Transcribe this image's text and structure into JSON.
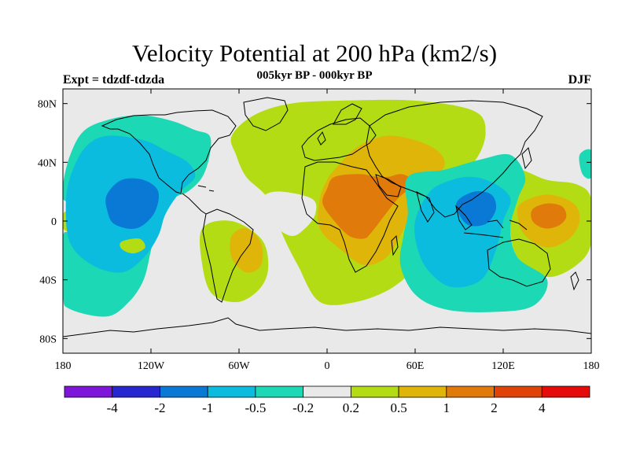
{
  "header": {
    "title": "Velocity Potential at 200 hPa (km2/s)",
    "subtitle": "005kyr BP - 000kyr BP",
    "left_label": "Expt = tdzdf-tdzda",
    "right_label": "DJF"
  },
  "axes": {
    "x_ticks": [
      {
        "value": -180,
        "label": "180"
      },
      {
        "value": -120,
        "label": "120W"
      },
      {
        "value": -60,
        "label": "60W"
      },
      {
        "value": 0,
        "label": "0"
      },
      {
        "value": 60,
        "label": "60E"
      },
      {
        "value": 120,
        "label": "120E"
      },
      {
        "value": 180,
        "label": "180"
      }
    ],
    "y_ticks": [
      {
        "value": 80,
        "label": "80N"
      },
      {
        "value": 40,
        "label": "40N"
      },
      {
        "value": 0,
        "label": "0"
      },
      {
        "value": -40,
        "label": "40S"
      },
      {
        "value": -80,
        "label": "80S"
      }
    ],
    "lon_range": [
      -180,
      180
    ],
    "lat_range": [
      -90,
      90
    ]
  },
  "colorbar": {
    "colors": [
      "#7d16d8",
      "#2727d0",
      "#0a79d6",
      "#0cbcdf",
      "#1dd8b4",
      "#e9e9e9",
      "#b4dc14",
      "#e0b50a",
      "#e07a0a",
      "#e0430a",
      "#e60b0b"
    ],
    "labels": [
      "-4",
      "-2",
      "-1",
      "-0.5",
      "-0.2",
      "0.2",
      "0.5",
      "1",
      "2",
      "4"
    ]
  },
  "map_data": {
    "type": "contour-fill-map",
    "background_color": "#e9e9e9",
    "regions": [
      {
        "level": "0.2",
        "color": "#b4dc14",
        "points": [
          [
            -62,
            45
          ],
          [
            -65,
            58
          ],
          [
            -50,
            72
          ],
          [
            -25,
            80
          ],
          [
            10,
            82
          ],
          [
            60,
            82
          ],
          [
            100,
            75
          ],
          [
            108,
            60
          ],
          [
            100,
            40
          ],
          [
            80,
            25
          ],
          [
            70,
            10
          ],
          [
            55,
            -5
          ],
          [
            58,
            -30
          ],
          [
            45,
            -45
          ],
          [
            20,
            -55
          ],
          [
            -5,
            -55
          ],
          [
            -20,
            -30
          ],
          [
            -30,
            -10
          ],
          [
            -40,
            15
          ],
          [
            -55,
            30
          ]
        ]
      },
      {
        "level": "0.2",
        "color": "#b4dc14",
        "points": [
          [
            -85,
            -5
          ],
          [
            -65,
            0
          ],
          [
            -45,
            -12
          ],
          [
            -40,
            -30
          ],
          [
            -45,
            -45
          ],
          [
            -60,
            -55
          ],
          [
            -78,
            -50
          ],
          [
            -85,
            -30
          ]
        ]
      },
      {
        "level": "0.2",
        "color": "#b4dc14",
        "points": [
          [
            128,
            35
          ],
          [
            150,
            28
          ],
          [
            170,
            25
          ],
          [
            180,
            15
          ],
          [
            180,
            -15
          ],
          [
            170,
            -30
          ],
          [
            150,
            -38
          ],
          [
            130,
            -25
          ],
          [
            125,
            -5
          ],
          [
            128,
            15
          ]
        ]
      },
      {
        "level": "0.2",
        "color": "#b4dc14",
        "points": [
          [
            -180,
            5
          ],
          [
            -170,
            8
          ],
          [
            -168,
            0
          ],
          [
            -172,
            -8
          ],
          [
            -180,
            -5
          ]
        ]
      },
      {
        "level": "0.5",
        "color": "#e0b50a",
        "points": [
          [
            5,
            35
          ],
          [
            20,
            50
          ],
          [
            40,
            58
          ],
          [
            60,
            55
          ],
          [
            75,
            48
          ],
          [
            80,
            38
          ],
          [
            70,
            25
          ],
          [
            60,
            10
          ],
          [
            50,
            -10
          ],
          [
            40,
            -25
          ],
          [
            25,
            -30
          ],
          [
            10,
            -20
          ],
          [
            -5,
            -5
          ],
          [
            -5,
            15
          ],
          [
            0,
            28
          ]
        ]
      },
      {
        "level": "0.5",
        "color": "#e0b50a",
        "points": [
          [
            -65,
            -10
          ],
          [
            -55,
            -5
          ],
          [
            -45,
            -15
          ],
          [
            -45,
            -30
          ],
          [
            -55,
            -35
          ],
          [
            -65,
            -25
          ]
        ]
      },
      {
        "level": "0.5",
        "color": "#e0b50a",
        "points": [
          [
            132,
            12
          ],
          [
            150,
            18
          ],
          [
            168,
            12
          ],
          [
            172,
            0
          ],
          [
            165,
            -12
          ],
          [
            150,
            -18
          ],
          [
            135,
            -10
          ],
          [
            130,
            2
          ]
        ]
      },
      {
        "level": "1",
        "color": "#e07a0a",
        "points": [
          [
            5,
            30
          ],
          [
            22,
            32
          ],
          [
            35,
            30
          ],
          [
            50,
            30
          ],
          [
            58,
            25
          ],
          [
            48,
            15
          ],
          [
            40,
            5
          ],
          [
            30,
            -8
          ],
          [
            25,
            -12
          ],
          [
            15,
            -10
          ],
          [
            5,
            0
          ],
          [
            -3,
            12
          ],
          [
            0,
            22
          ]
        ]
      },
      {
        "level": "1",
        "color": "#e07a0a",
        "points": [
          [
            40,
            28
          ],
          [
            50,
            32
          ],
          [
            58,
            28
          ],
          [
            52,
            24
          ]
        ]
      },
      {
        "level": "1",
        "color": "#e07a0a",
        "points": [
          [
            140,
            8
          ],
          [
            150,
            12
          ],
          [
            160,
            10
          ],
          [
            163,
            3
          ],
          [
            158,
            -3
          ],
          [
            148,
            -5
          ],
          [
            140,
            0
          ]
        ]
      },
      {
        "level": "-0.2",
        "color": "#1dd8b4",
        "points": [
          [
            -180,
            25
          ],
          [
            -175,
            45
          ],
          [
            -165,
            62
          ],
          [
            -145,
            70
          ],
          [
            -125,
            72
          ],
          [
            -105,
            68
          ],
          [
            -90,
            62
          ],
          [
            -80,
            58
          ],
          [
            -80,
            45
          ],
          [
            -85,
            30
          ],
          [
            -95,
            20
          ],
          [
            -105,
            15
          ],
          [
            -115,
            0
          ],
          [
            -120,
            -20
          ],
          [
            -125,
            -40
          ],
          [
            -135,
            -55
          ],
          [
            -150,
            -65
          ],
          [
            -175,
            -60
          ],
          [
            -180,
            -50
          ],
          [
            -180,
            -10
          ],
          [
            -172,
            -10
          ],
          [
            -168,
            0
          ],
          [
            -170,
            10
          ],
          [
            -180,
            15
          ]
        ]
      },
      {
        "level": "-0.2",
        "color": "#1dd8b4",
        "points": [
          [
            55,
            30
          ],
          [
            80,
            35
          ],
          [
            105,
            42
          ],
          [
            125,
            45
          ],
          [
            135,
            30
          ],
          [
            130,
            15
          ],
          [
            125,
            -5
          ],
          [
            130,
            -25
          ],
          [
            150,
            -40
          ],
          [
            140,
            -58
          ],
          [
            110,
            -62
          ],
          [
            80,
            -60
          ],
          [
            60,
            -50
          ],
          [
            50,
            -30
          ],
          [
            52,
            -10
          ],
          [
            55,
            5
          ]
        ]
      },
      {
        "level": "-0.2",
        "color": "#1dd8b4",
        "points": [
          [
            172,
            45
          ],
          [
            180,
            48
          ],
          [
            180,
            30
          ],
          [
            174,
            32
          ]
        ]
      },
      {
        "level": "-0.5",
        "color": "#0cbcdf",
        "points": [
          [
            -175,
            30
          ],
          [
            -165,
            50
          ],
          [
            -150,
            58
          ],
          [
            -125,
            55
          ],
          [
            -110,
            48
          ],
          [
            -95,
            40
          ],
          [
            -90,
            30
          ],
          [
            -100,
            20
          ],
          [
            -110,
            5
          ],
          [
            -115,
            -10
          ],
          [
            -125,
            -25
          ],
          [
            -140,
            -35
          ],
          [
            -160,
            -30
          ],
          [
            -175,
            -15
          ],
          [
            -178,
            10
          ]
        ]
      },
      {
        "level": "-0.5",
        "color": "#0cbcdf",
        "points": [
          [
            70,
            20
          ],
          [
            85,
            28
          ],
          [
            100,
            30
          ],
          [
            115,
            25
          ],
          [
            125,
            15
          ],
          [
            120,
            0
          ],
          [
            115,
            -20
          ],
          [
            105,
            -40
          ],
          [
            85,
            -45
          ],
          [
            70,
            -35
          ],
          [
            62,
            -20
          ],
          [
            60,
            0
          ]
        ]
      },
      {
        "level": "-1",
        "color": "#0a79d6",
        "points": [
          [
            -150,
            18
          ],
          [
            -140,
            28
          ],
          [
            -125,
            28
          ],
          [
            -115,
            20
          ],
          [
            -118,
            5
          ],
          [
            -130,
            -5
          ],
          [
            -145,
            -2
          ],
          [
            -150,
            8
          ]
        ]
      },
      {
        "level": "-1",
        "color": "#0a79d6",
        "points": [
          [
            88,
            12
          ],
          [
            100,
            20
          ],
          [
            112,
            18
          ],
          [
            115,
            8
          ],
          [
            108,
            -2
          ],
          [
            95,
            -2
          ]
        ]
      },
      {
        "level": "0.2",
        "color": "#b4dc14",
        "points": [
          [
            -140,
            -14
          ],
          [
            -128,
            -12
          ],
          [
            -124,
            -18
          ],
          [
            -132,
            -22
          ],
          [
            -140,
            -19
          ]
        ]
      }
    ],
    "gap_regions": [
      {
        "points": [
          [
            -42,
            18
          ],
          [
            -30,
            20
          ],
          [
            -10,
            15
          ],
          [
            -8,
            5
          ],
          [
            -15,
            -5
          ],
          [
            -25,
            -10
          ],
          [
            -40,
            0
          ],
          [
            -45,
            10
          ]
        ]
      }
    ]
  }
}
